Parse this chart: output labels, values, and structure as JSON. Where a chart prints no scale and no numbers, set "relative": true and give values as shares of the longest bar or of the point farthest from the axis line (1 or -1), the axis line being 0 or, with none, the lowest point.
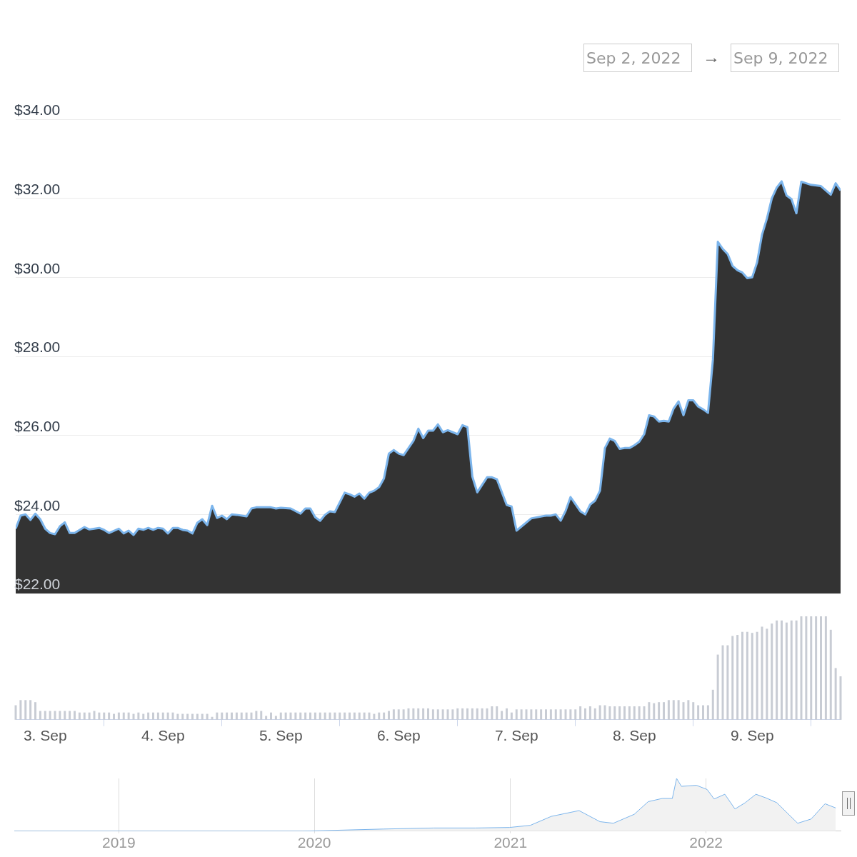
{
  "chart_data": [
    {
      "type": "area",
      "annotations": [
        "Sep 2, 2022",
        "→",
        "Sep 9, 2022"
      ],
      "xlim": [
        "2022-09-02T18:00",
        "2022-09-09T18:00"
      ],
      "ylim": [
        22,
        34
      ],
      "yticks": [
        {
          "value": 22,
          "label": "$22.00"
        },
        {
          "value": 24,
          "label": "$24.00"
        },
        {
          "value": 26,
          "label": "$26.00"
        },
        {
          "value": 28,
          "label": "$28.00"
        },
        {
          "value": 30,
          "label": "$30.00"
        },
        {
          "value": 32,
          "label": "$32.00"
        },
        {
          "value": 34,
          "label": "$34.00"
        }
      ],
      "grid": "y",
      "tick_labels": "y",
      "series": [
        {
          "color": "#7cb5ec",
          "x": [
            "2022-09-02T18:00",
            "2022-09-02T19:00",
            "2022-09-02T20:00",
            "2022-09-02T21:00",
            "2022-09-02T22:00",
            "2022-09-02T23:00",
            "2022-09-03T00:00",
            "2022-09-03T01:00",
            "2022-09-03T02:00",
            "2022-09-03T03:00",
            "2022-09-03T04:00",
            "2022-09-03T05:00",
            "2022-09-03T06:00",
            "2022-09-03T08:00",
            "2022-09-03T09:00",
            "2022-09-03T11:00",
            "2022-09-03T12:00",
            "2022-09-03T13:00",
            "2022-09-03T15:00",
            "2022-09-03T16:00",
            "2022-09-03T17:00",
            "2022-09-03T18:00",
            "2022-09-03T19:00",
            "2022-09-03T20:00",
            "2022-09-03T21:00",
            "2022-09-03T22:00",
            "2022-09-03T23:00",
            "2022-09-04T00:00",
            "2022-09-04T01:00",
            "2022-09-04T02:00",
            "2022-09-04T03:00",
            "2022-09-04T04:00",
            "2022-09-04T05:00",
            "2022-09-04T06:00",
            "2022-09-04T07:00",
            "2022-09-04T08:00",
            "2022-09-04T09:00",
            "2022-09-04T10:00",
            "2022-09-04T11:00",
            "2022-09-04T12:00",
            "2022-09-04T13:00",
            "2022-09-04T14:00",
            "2022-09-04T15:00",
            "2022-09-04T17:00",
            "2022-09-04T18:00",
            "2022-09-04T19:00",
            "2022-09-04T22:00",
            "2022-09-04T23:00",
            "2022-09-05T00:00",
            "2022-09-05T02:00",
            "2022-09-05T04:00",
            "2022-09-05T05:00",
            "2022-09-05T06:00",
            "2022-09-05T07:00",
            "2022-09-05T08:00",
            "2022-09-05T09:00",
            "2022-09-05T10:00",
            "2022-09-05T11:00",
            "2022-09-05T13:00",
            "2022-09-05T14:00",
            "2022-09-05T15:00",
            "2022-09-05T16:00",
            "2022-09-05T17:00",
            "2022-09-05T18:00",
            "2022-09-05T19:00",
            "2022-09-05T20:00",
            "2022-09-05T21:00",
            "2022-09-05T22:00",
            "2022-09-05T23:00",
            "2022-09-06T00:00",
            "2022-09-06T01:00",
            "2022-09-06T03:00",
            "2022-09-06T04:00",
            "2022-09-06T05:00",
            "2022-09-06T06:00",
            "2022-09-06T07:00",
            "2022-09-06T08:00",
            "2022-09-06T09:00",
            "2022-09-06T10:00",
            "2022-09-06T12:00",
            "2022-09-06T13:00",
            "2022-09-06T14:00",
            "2022-09-06T15:00",
            "2022-09-06T16:00",
            "2022-09-06T18:00",
            "2022-09-06T19:00",
            "2022-09-06T20:00",
            "2022-09-06T22:00",
            "2022-09-06T23:00",
            "2022-09-07T00:00",
            "2022-09-07T03:00",
            "2022-09-07T06:00",
            "2022-09-07T07:00",
            "2022-09-07T08:00",
            "2022-09-07T09:00",
            "2022-09-07T10:00",
            "2022-09-07T11:00",
            "2022-09-07T12:00",
            "2022-09-07T13:00",
            "2022-09-07T14:00",
            "2022-09-07T15:00",
            "2022-09-07T16:00",
            "2022-09-07T17:00",
            "2022-09-07T18:00",
            "2022-09-07T19:00",
            "2022-09-07T20:00",
            "2022-09-07T21:00",
            "2022-09-07T22:00",
            "2022-09-07T23:00",
            "2022-09-08T00:00",
            "2022-09-08T01:00",
            "2022-09-08T02:00",
            "2022-09-08T03:00",
            "2022-09-08T04:00",
            "2022-09-08T05:00",
            "2022-09-08T06:00",
            "2022-09-08T07:00",
            "2022-09-08T08:00",
            "2022-09-08T09:00",
            "2022-09-08T10:00",
            "2022-09-08T11:00",
            "2022-09-08T12:00",
            "2022-09-08T13:00",
            "2022-09-08T14:00",
            "2022-09-08T15:00",
            "2022-09-08T16:00",
            "2022-09-08T17:00",
            "2022-09-08T18:00",
            "2022-09-08T19:00",
            "2022-09-08T20:00",
            "2022-09-08T21:00",
            "2022-09-08T22:00",
            "2022-09-08T23:00",
            "2022-09-09T00:00",
            "2022-09-09T01:00",
            "2022-09-09T02:00",
            "2022-09-09T03:00",
            "2022-09-09T04:00",
            "2022-09-09T05:00",
            "2022-09-09T06:00",
            "2022-09-09T07:00",
            "2022-09-09T08:00",
            "2022-09-09T09:00",
            "2022-09-09T10:00",
            "2022-09-09T11:00",
            "2022-09-09T12:00",
            "2022-09-09T14:00",
            "2022-09-09T15:00",
            "2022-09-09T16:00",
            "2022-09-09T17:00",
            "2022-09-09T18:00"
          ],
          "values": [
            23.64,
            23.97,
            24.0,
            23.86,
            24.02,
            23.88,
            23.64,
            23.53,
            23.5,
            23.7,
            23.8,
            23.53,
            23.53,
            23.68,
            23.62,
            23.66,
            23.61,
            23.53,
            23.64,
            23.52,
            23.59,
            23.48,
            23.64,
            23.61,
            23.66,
            23.61,
            23.66,
            23.64,
            23.52,
            23.66,
            23.66,
            23.61,
            23.59,
            23.52,
            23.79,
            23.88,
            23.73,
            24.22,
            23.91,
            23.97,
            23.88,
            24.0,
            23.99,
            23.95,
            24.15,
            24.18,
            24.18,
            24.15,
            24.17,
            24.15,
            24.02,
            24.15,
            24.15,
            23.93,
            23.84,
            23.99,
            24.08,
            24.06,
            24.55,
            24.51,
            24.45,
            24.53,
            24.4,
            24.55,
            24.6,
            24.69,
            24.91,
            25.54,
            25.63,
            25.54,
            25.5,
            25.86,
            26.17,
            25.93,
            26.12,
            26.12,
            26.28,
            26.08,
            26.13,
            26.03,
            26.26,
            26.21,
            24.96,
            24.56,
            24.94,
            24.94,
            24.89,
            24.24,
            24.2,
            23.59,
            23.9,
            23.97,
            23.97,
            24.0,
            23.84,
            24.09,
            24.44,
            24.26,
            24.08,
            24.0,
            24.25,
            24.35,
            24.6,
            25.68,
            25.92,
            25.86,
            25.66,
            25.68,
            25.68,
            25.75,
            25.84,
            26.03,
            26.51,
            26.48,
            26.35,
            26.37,
            26.35,
            26.68,
            26.86,
            26.51,
            26.89,
            26.89,
            26.73,
            26.66,
            26.57,
            27.92,
            30.9,
            30.72,
            30.59,
            30.29,
            30.18,
            30.12,
            29.98,
            30.0,
            30.38,
            31.08,
            31.49,
            32.0,
            32.27,
            32.43,
            32.07,
            31.98,
            31.62,
            32.42,
            32.38,
            32.34,
            32.31,
            32.2,
            32.09,
            32.38,
            32.2
          ]
        }
      ]
    },
    {
      "type": "bar",
      "relative": true,
      "color": "#c8ccd4",
      "grid": false,
      "tick_labels": "x",
      "xlim": [
        "2022-09-02T18:00",
        "2022-09-09T18:00"
      ],
      "xticks": [
        {
          "value": "2022-09-03",
          "label": "3. Sep"
        },
        {
          "value": "2022-09-04",
          "label": "4. Sep"
        },
        {
          "value": "2022-09-05",
          "label": "5. Sep"
        },
        {
          "value": "2022-09-06",
          "label": "6. Sep"
        },
        {
          "value": "2022-09-07",
          "label": "7. Sep"
        },
        {
          "value": "2022-09-08",
          "label": "8. Sep"
        },
        {
          "value": "2022-09-09",
          "label": "9. Sep"
        }
      ],
      "x": [
        "2022-09-02T18:00",
        "2022-09-02T19:00",
        "2022-09-02T20:00",
        "2022-09-02T21:00",
        "2022-09-02T22:00",
        "2022-09-02T23:00",
        "2022-09-03T00:00",
        "2022-09-03T01:00",
        "2022-09-03T02:00",
        "2022-09-03T03:00",
        "2022-09-03T04:00",
        "2022-09-03T05:00",
        "2022-09-03T06:00",
        "2022-09-03T07:00",
        "2022-09-03T08:00",
        "2022-09-03T09:00",
        "2022-09-03T10:00",
        "2022-09-03T11:00",
        "2022-09-03T12:00",
        "2022-09-03T13:00",
        "2022-09-03T14:00",
        "2022-09-03T15:00",
        "2022-09-03T16:00",
        "2022-09-03T17:00",
        "2022-09-03T18:00",
        "2022-09-03T19:00",
        "2022-09-03T20:00",
        "2022-09-03T21:00",
        "2022-09-03T22:00",
        "2022-09-03T23:00",
        "2022-09-04T00:00",
        "2022-09-04T01:00",
        "2022-09-04T02:00",
        "2022-09-04T03:00",
        "2022-09-04T04:00",
        "2022-09-04T05:00",
        "2022-09-04T06:00",
        "2022-09-04T07:00",
        "2022-09-04T08:00",
        "2022-09-04T09:00",
        "2022-09-04T10:00",
        "2022-09-04T11:00",
        "2022-09-04T12:00",
        "2022-09-04T13:00",
        "2022-09-04T14:00",
        "2022-09-04T15:00",
        "2022-09-04T16:00",
        "2022-09-04T17:00",
        "2022-09-04T18:00",
        "2022-09-04T19:00",
        "2022-09-04T20:00",
        "2022-09-04T21:00",
        "2022-09-04T22:00",
        "2022-09-04T23:00",
        "2022-09-05T00:00",
        "2022-09-05T01:00",
        "2022-09-05T02:00",
        "2022-09-05T03:00",
        "2022-09-05T04:00",
        "2022-09-05T05:00",
        "2022-09-05T06:00",
        "2022-09-05T07:00",
        "2022-09-05T08:00",
        "2022-09-05T09:00",
        "2022-09-05T10:00",
        "2022-09-05T11:00",
        "2022-09-05T12:00",
        "2022-09-05T13:00",
        "2022-09-05T14:00",
        "2022-09-05T15:00",
        "2022-09-05T16:00",
        "2022-09-05T17:00",
        "2022-09-05T18:00",
        "2022-09-05T19:00",
        "2022-09-05T20:00",
        "2022-09-05T21:00",
        "2022-09-05T22:00",
        "2022-09-05T23:00",
        "2022-09-06T00:00",
        "2022-09-06T01:00",
        "2022-09-06T02:00",
        "2022-09-06T03:00",
        "2022-09-06T04:00",
        "2022-09-06T05:00",
        "2022-09-06T06:00",
        "2022-09-06T07:00",
        "2022-09-06T08:00",
        "2022-09-06T09:00",
        "2022-09-06T10:00",
        "2022-09-06T11:00",
        "2022-09-06T12:00",
        "2022-09-06T13:00",
        "2022-09-06T14:00",
        "2022-09-06T15:00",
        "2022-09-06T16:00",
        "2022-09-06T17:00",
        "2022-09-06T18:00",
        "2022-09-06T19:00",
        "2022-09-06T20:00",
        "2022-09-06T21:00",
        "2022-09-06T22:00",
        "2022-09-06T23:00",
        "2022-09-07T00:00",
        "2022-09-07T01:00",
        "2022-09-07T02:00",
        "2022-09-07T03:00",
        "2022-09-07T04:00",
        "2022-09-07T05:00",
        "2022-09-07T06:00",
        "2022-09-07T07:00",
        "2022-09-07T08:00",
        "2022-09-07T09:00",
        "2022-09-07T10:00",
        "2022-09-07T11:00",
        "2022-09-07T12:00",
        "2022-09-07T13:00",
        "2022-09-07T14:00",
        "2022-09-07T15:00",
        "2022-09-07T16:00",
        "2022-09-07T17:00",
        "2022-09-07T18:00",
        "2022-09-07T19:00",
        "2022-09-07T20:00",
        "2022-09-07T21:00",
        "2022-09-07T22:00",
        "2022-09-07T23:00",
        "2022-09-08T00:00",
        "2022-09-08T01:00",
        "2022-09-08T02:00",
        "2022-09-08T03:00",
        "2022-09-08T04:00",
        "2022-09-08T05:00",
        "2022-09-08T06:00",
        "2022-09-08T07:00",
        "2022-09-08T08:00",
        "2022-09-08T09:00",
        "2022-09-08T10:00",
        "2022-09-08T11:00",
        "2022-09-08T12:00",
        "2022-09-08T13:00",
        "2022-09-08T14:00",
        "2022-09-08T15:00",
        "2022-09-08T16:00",
        "2022-09-08T17:00",
        "2022-09-08T18:00",
        "2022-09-08T19:00",
        "2022-09-08T20:00",
        "2022-09-08T21:00",
        "2022-09-08T22:00",
        "2022-09-08T23:00",
        "2022-09-09T00:00",
        "2022-09-09T01:00",
        "2022-09-09T02:00",
        "2022-09-09T03:00",
        "2022-09-09T04:00",
        "2022-09-09T05:00",
        "2022-09-09T06:00",
        "2022-09-09T07:00",
        "2022-09-09T08:00",
        "2022-09-09T09:00",
        "2022-09-09T10:00",
        "2022-09-09T11:00",
        "2022-09-09T12:00",
        "2022-09-09T13:00",
        "2022-09-09T14:00",
        "2022-09-09T15:00",
        "2022-09-09T16:00",
        "2022-09-09T17:00",
        "2022-09-09T18:00"
      ],
      "values": [
        0.14,
        0.19,
        0.19,
        0.19,
        0.17,
        0.085,
        0.085,
        0.085,
        0.085,
        0.085,
        0.085,
        0.085,
        0.085,
        0.07,
        0.07,
        0.07,
        0.085,
        0.07,
        0.07,
        0.07,
        0.057,
        0.07,
        0.07,
        0.07,
        0.057,
        0.07,
        0.057,
        0.07,
        0.07,
        0.07,
        0.07,
        0.07,
        0.07,
        0.057,
        0.057,
        0.057,
        0.057,
        0.057,
        0.057,
        0.057,
        0.028,
        0.07,
        0.07,
        0.07,
        0.07,
        0.07,
        0.07,
        0.07,
        0.07,
        0.085,
        0.085,
        0.037,
        0.07,
        0.037,
        0.07,
        0.07,
        0.07,
        0.07,
        0.07,
        0.07,
        0.07,
        0.07,
        0.07,
        0.07,
        0.07,
        0.07,
        0.07,
        0.07,
        0.07,
        0.07,
        0.07,
        0.07,
        0.07,
        0.057,
        0.07,
        0.07,
        0.085,
        0.1,
        0.1,
        0.1,
        0.11,
        0.11,
        0.11,
        0.11,
        0.11,
        0.1,
        0.1,
        0.1,
        0.1,
        0.1,
        0.11,
        0.11,
        0.11,
        0.11,
        0.11,
        0.11,
        0.11,
        0.13,
        0.13,
        0.085,
        0.11,
        0.07,
        0.1,
        0.1,
        0.1,
        0.1,
        0.1,
        0.1,
        0.1,
        0.1,
        0.1,
        0.1,
        0.1,
        0.1,
        0.1,
        0.13,
        0.11,
        0.13,
        0.11,
        0.14,
        0.14,
        0.13,
        0.13,
        0.13,
        0.13,
        0.13,
        0.13,
        0.13,
        0.13,
        0.17,
        0.16,
        0.17,
        0.17,
        0.19,
        0.19,
        0.19,
        0.17,
        0.19,
        0.17,
        0.14,
        0.14,
        0.14,
        0.29,
        0.63,
        0.72,
        0.72,
        0.81,
        0.82,
        0.85,
        0.85,
        0.84,
        0.85,
        0.9,
        0.88,
        0.93,
        0.96,
        0.96,
        0.94,
        0.96,
        0.96,
        1,
        1,
        1,
        1,
        1,
        1,
        0.87,
        0.5,
        0.42
      ]
    },
    {
      "type": "area",
      "relative": true,
      "color": "#7cb5ec",
      "grid": "x",
      "tick_labels": "x",
      "xlim": [
        "2018-06-20",
        "2022-09-09"
      ],
      "xticks": [
        {
          "value": "2019-01-01",
          "label": "2019"
        },
        {
          "value": "2020-01-01",
          "label": "2020"
        },
        {
          "value": "2021-01-01",
          "label": "2021"
        },
        {
          "value": "2022-01-01",
          "label": "2022"
        }
      ],
      "x": [
        "2018-06-20",
        "2019-12-10",
        "2020-05-08",
        "2020-08-11",
        "2020-10-27",
        "2020-12-30",
        "2021-02-07",
        "2021-03-18",
        "2021-05-09",
        "2021-06-17",
        "2021-07-12",
        "2021-08-20",
        "2021-09-15",
        "2021-10-11",
        "2021-10-30",
        "2021-11-07",
        "2021-11-16",
        "2021-12-14",
        "2022-01-03",
        "2022-01-16",
        "2022-02-05",
        "2022-02-24",
        "2022-03-15",
        "2022-04-04",
        "2022-04-23",
        "2022-05-13",
        "2022-06-01",
        "2022-06-21",
        "2022-07-16",
        "2022-08-11",
        "2022-08-31"
      ],
      "values": [
        0,
        0,
        0.04,
        0.06,
        0.06,
        0.07,
        0.11,
        0.28,
        0.39,
        0.18,
        0.15,
        0.32,
        0.56,
        0.62,
        0.62,
        1,
        0.85,
        0.87,
        0.79,
        0.61,
        0.7,
        0.42,
        0.54,
        0.7,
        0.63,
        0.54,
        0.35,
        0.15,
        0.23,
        0.52,
        0.44
      ]
    }
  ]
}
